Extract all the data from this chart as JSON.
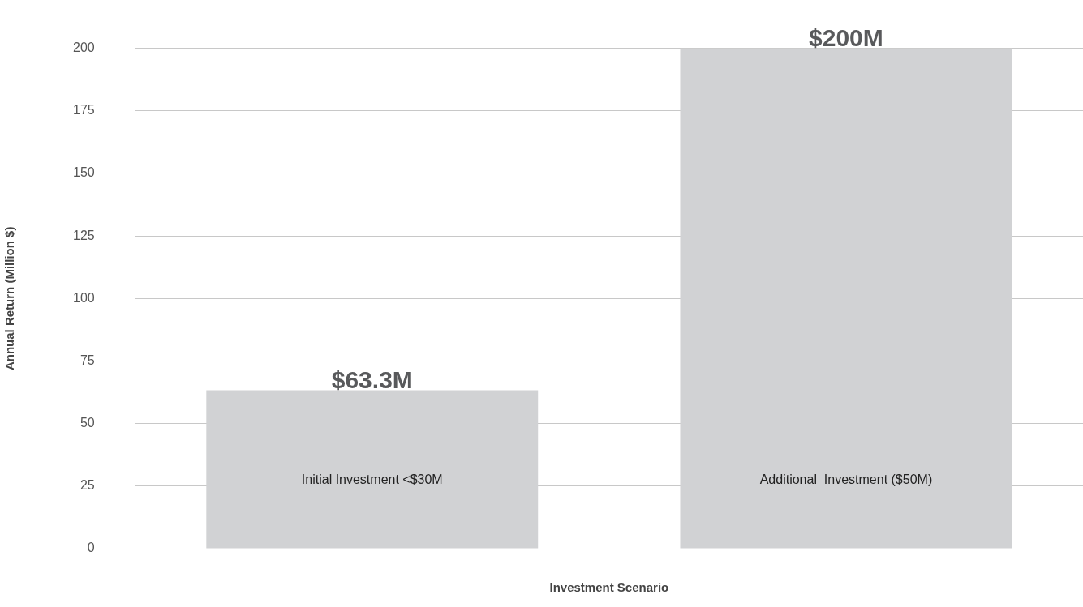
{
  "chart_data": {
    "type": "bar",
    "xlabel": "Investment Scenario",
    "ylabel": "Annual Return (Million $)",
    "categories": [
      "Initial Investment <$30M",
      "Additional  Investment ($50M)"
    ],
    "values": [
      63.3,
      200
    ],
    "color": "#d1d2d4",
    "value_labels": [
      "$63.3M",
      "$200M"
    ],
    "ylim": [
      0,
      200
    ],
    "yticks": [
      0,
      25,
      50,
      75,
      100,
      125,
      150,
      175,
      200
    ],
    "grid": "y"
  }
}
